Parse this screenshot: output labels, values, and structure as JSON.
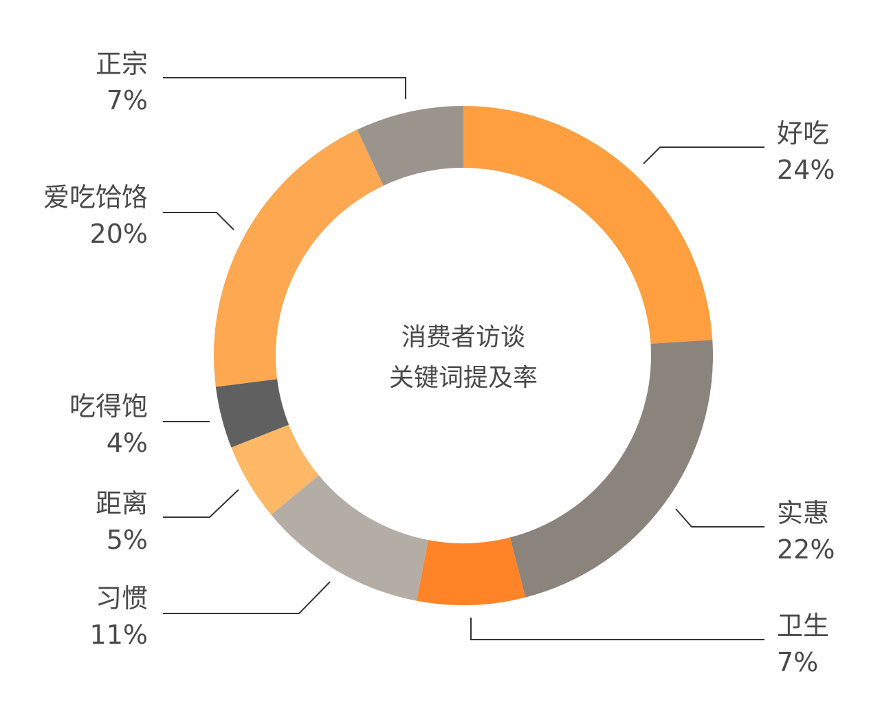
{
  "chart_data": {
    "type": "pie",
    "center_text": [
      "消费者访谈",
      "关键词提及率"
    ],
    "categories": [
      "好吃",
      "实惠",
      "卫生",
      "习惯",
      "距离",
      "吃得饱",
      "爱吃饸饹",
      "正宗"
    ],
    "values": [
      24,
      22,
      7,
      11,
      5,
      4,
      20,
      7
    ],
    "value_labels": [
      "24%",
      "22%",
      "7%",
      "11%",
      "5%",
      "4%",
      "20%",
      "7%"
    ],
    "colors": [
      "#ff9f40",
      "#8a847c",
      "#ff8427",
      "#b4ada5",
      "#ffb865",
      "#606060",
      "#ffa852",
      "#9a948c"
    ]
  }
}
